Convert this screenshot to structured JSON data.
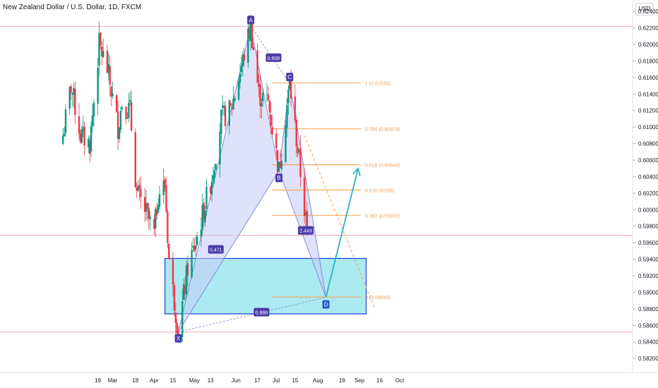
{
  "header": {
    "title": "New Zealand Dollar / U.S. Dollar, 1D, FXCM",
    "currency": "USD"
  },
  "chart_data": {
    "type": "candlestick",
    "title": "New Zealand Dollar / U.S. Dollar, 1D, FXCM",
    "y_axis": {
      "min": 0.5809,
      "max": 0.6247,
      "ticks": [
        "0.62400",
        "0.62200",
        "0.62000",
        "0.61800",
        "0.61600",
        "0.61400",
        "0.61200",
        "0.61000",
        "0.60800",
        "0.60600",
        "0.60400",
        "0.60200",
        "0.60000",
        "0.59800",
        "0.59600",
        "0.59400",
        "0.59200",
        "0.59000",
        "0.58800",
        "0.58600",
        "0.58400",
        "0.58200"
      ]
    },
    "x_axis": {
      "ticks": [
        "19",
        "Mar",
        "18",
        "Apr",
        "15",
        "May",
        "13",
        "Jun",
        "17",
        "Jul",
        "15",
        "Aug",
        "19",
        "Sep",
        "16",
        "Oct"
      ]
    },
    "price_label": "2.449",
    "pattern_points": [
      {
        "label": "X",
        "date": "2024-04-19",
        "price": 0.5852
      },
      {
        "label": "A",
        "date": "2024-06-12",
        "price": 0.6222
      },
      {
        "label": "B",
        "date": "2024-07-03",
        "price": 0.6047
      },
      {
        "label": "C",
        "date": "2024-07-11",
        "price": 0.6153
      },
      {
        "label": "D",
        "date": "2024-08-07",
        "price": 0.5894
      }
    ],
    "ratio_labels": [
      "0.608",
      "0.471",
      "0.886"
    ],
    "fib_levels": [
      {
        "label": "1 (0.61534)",
        "value": 0.61534
      },
      {
        "label": "0.786 (0.60979)",
        "value": 0.60979
      },
      {
        "label": "0.618 (0.60544)",
        "value": 0.60544
      },
      {
        "label": "0.5 (0.60238)",
        "value": 0.60238
      },
      {
        "label": "0.382 (0.59932)",
        "value": 0.59932
      },
      {
        "label": "0 (0.58943)",
        "value": 0.58943
      }
    ],
    "target_zone": {
      "top": 0.5941,
      "bottom": 0.5874
    },
    "projection": {
      "from": 0.5894,
      "to": 0.605
    },
    "horizontal_lines": [
      0.6222,
      0.5969,
      0.5852
    ],
    "grid": false,
    "colors": {
      "up": "#089981",
      "down": "#f23645",
      "pattern_fill": "#c5cbf5",
      "pattern_stroke": "#7b83d6",
      "label_bg": "#4a3aa8",
      "fib": "#f7a04d",
      "zone_fill": "#80deea",
      "zone_stroke": "#1e4bd2",
      "projection": "#2bb3c0"
    }
  }
}
